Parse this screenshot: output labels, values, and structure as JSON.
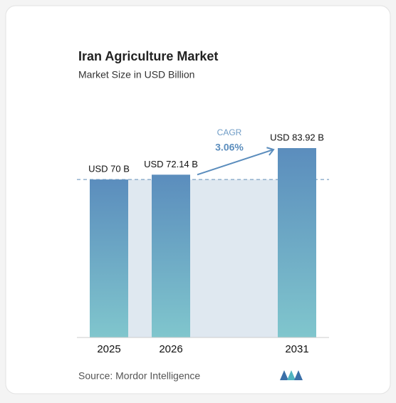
{
  "chart_data": {
    "type": "bar",
    "title": "Iran Agriculture Market",
    "subtitle": "Market Size in USD Billion",
    "categories": [
      "2025",
      "2026",
      "2031"
    ],
    "values": [
      70,
      72.14,
      83.92
    ],
    "value_labels": [
      "USD 70 B",
      "USD 72.14 B",
      "USD 83.92 B"
    ],
    "annotation": {
      "label": "CAGR",
      "value": "3.06%"
    },
    "source": "Source: Mordor Intelligence"
  }
}
